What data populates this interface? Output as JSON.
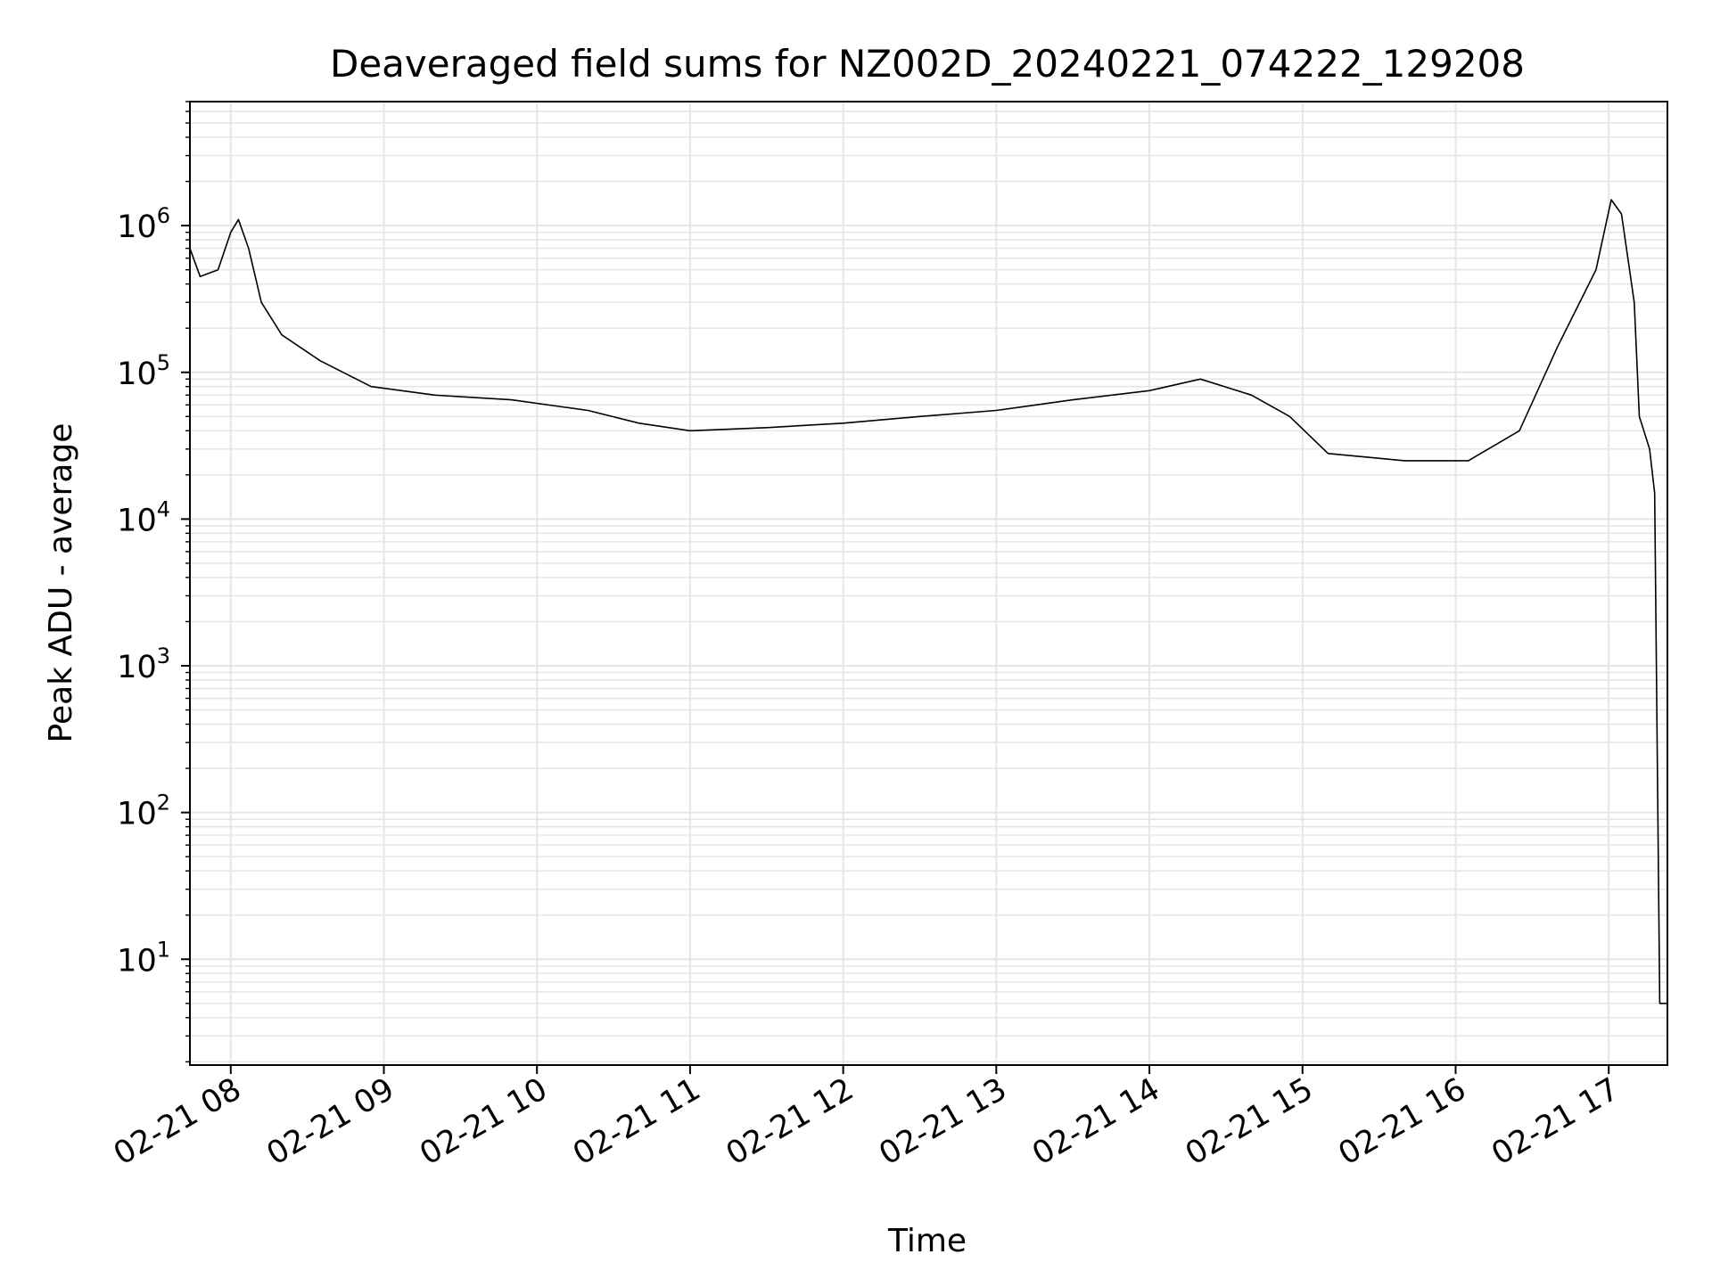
{
  "chart_data": {
    "type": "line",
    "title": "Deaveraged field sums for NZ002D_20240221_074222_129208",
    "xlabel": "Time",
    "ylabel": "Peak ADU - average",
    "y_scale": "log",
    "ylim": [
      1.9,
      7000000
    ],
    "xlim": [
      "2024-02-21 07:44",
      "2024-02-21 17:23"
    ],
    "grid": true,
    "legend": "none",
    "x_ticks": [
      {
        "label": "02-21 08",
        "value": "2024-02-21 08:00"
      },
      {
        "label": "02-21 09",
        "value": "2024-02-21 09:00"
      },
      {
        "label": "02-21 10",
        "value": "2024-02-21 10:00"
      },
      {
        "label": "02-21 11",
        "value": "2024-02-21 11:00"
      },
      {
        "label": "02-21 12",
        "value": "2024-02-21 12:00"
      },
      {
        "label": "02-21 13",
        "value": "2024-02-21 13:00"
      },
      {
        "label": "02-21 14",
        "value": "2024-02-21 14:00"
      },
      {
        "label": "02-21 15",
        "value": "2024-02-21 15:00"
      },
      {
        "label": "02-21 16",
        "value": "2024-02-21 16:00"
      },
      {
        "label": "02-21 17",
        "value": "2024-02-21 17:00"
      }
    ],
    "y_ticks": [
      {
        "base": "10",
        "exp": "1",
        "value": 10
      },
      {
        "base": "10",
        "exp": "2",
        "value": 100
      },
      {
        "base": "10",
        "exp": "3",
        "value": 1000
      },
      {
        "base": "10",
        "exp": "4",
        "value": 10000
      },
      {
        "base": "10",
        "exp": "5",
        "value": 100000
      },
      {
        "base": "10",
        "exp": "6",
        "value": 1000000
      }
    ],
    "series": [
      {
        "color": "#000000",
        "points": [
          [
            "2024-02-21 07:44",
            700000
          ],
          [
            "2024-02-21 07:48",
            450000
          ],
          [
            "2024-02-21 07:55",
            500000
          ],
          [
            "2024-02-21 08:00",
            900000
          ],
          [
            "2024-02-21 08:03",
            1100000
          ],
          [
            "2024-02-21 08:07",
            700000
          ],
          [
            "2024-02-21 08:12",
            300000
          ],
          [
            "2024-02-21 08:20",
            180000
          ],
          [
            "2024-02-21 08:35",
            120000
          ],
          [
            "2024-02-21 08:55",
            80000
          ],
          [
            "2024-02-21 09:20",
            70000
          ],
          [
            "2024-02-21 09:50",
            65000
          ],
          [
            "2024-02-21 10:20",
            55000
          ],
          [
            "2024-02-21 10:40",
            45000
          ],
          [
            "2024-02-21 11:00",
            40000
          ],
          [
            "2024-02-21 11:30",
            42000
          ],
          [
            "2024-02-21 12:00",
            45000
          ],
          [
            "2024-02-21 12:30",
            50000
          ],
          [
            "2024-02-21 13:00",
            55000
          ],
          [
            "2024-02-21 13:30",
            65000
          ],
          [
            "2024-02-21 14:00",
            75000
          ],
          [
            "2024-02-21 14:20",
            90000
          ],
          [
            "2024-02-21 14:40",
            70000
          ],
          [
            "2024-02-21 14:55",
            50000
          ],
          [
            "2024-02-21 15:10",
            28000
          ],
          [
            "2024-02-21 15:40",
            25000
          ],
          [
            "2024-02-21 16:05",
            25000
          ],
          [
            "2024-02-21 16:25",
            40000
          ],
          [
            "2024-02-21 16:40",
            150000
          ],
          [
            "2024-02-21 16:55",
            500000
          ],
          [
            "2024-02-21 17:01",
            1500000
          ],
          [
            "2024-02-21 17:05",
            1200000
          ],
          [
            "2024-02-21 17:10",
            300000
          ],
          [
            "2024-02-21 17:12",
            50000
          ],
          [
            "2024-02-21 17:16",
            30000
          ],
          [
            "2024-02-21 17:18",
            15000
          ],
          [
            "2024-02-21 17:20",
            5
          ],
          [
            "2024-02-21 17:23",
            5
          ]
        ]
      }
    ]
  }
}
